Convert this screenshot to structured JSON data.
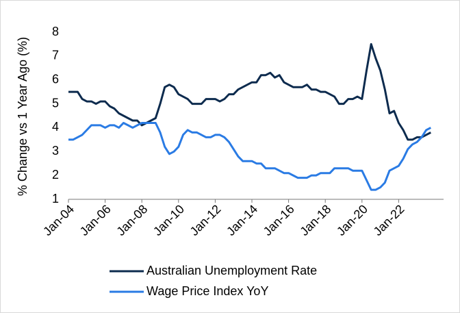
{
  "chart_data": {
    "type": "line",
    "y_label": "% Change vs 1 Year Ago (%)",
    "categories": [
      "Jan-04",
      null,
      null,
      null,
      null,
      null,
      null,
      null,
      "Jan-06",
      null,
      null,
      null,
      null,
      null,
      null,
      null,
      "Jan-08",
      null,
      null,
      null,
      null,
      null,
      null,
      null,
      "Jan-10",
      null,
      null,
      null,
      null,
      null,
      null,
      null,
      "Jan-12",
      null,
      null,
      null,
      null,
      null,
      null,
      null,
      "Jan-14",
      null,
      null,
      null,
      null,
      null,
      null,
      null,
      "Jan-16",
      null,
      null,
      null,
      null,
      null,
      null,
      null,
      "Jan-18",
      null,
      null,
      null,
      null,
      null,
      null,
      null,
      "Jan-20",
      null,
      null,
      null,
      null,
      null,
      null,
      null,
      "Jan-22",
      null,
      null,
      null,
      null,
      null,
      null,
      null
    ],
    "series": [
      {
        "name": "Australian Unemployment Rate",
        "color": "#0d2b4e",
        "values": [
          5.5,
          5.5,
          5.5,
          5.2,
          5.1,
          5.1,
          5.0,
          5.1,
          5.1,
          4.9,
          4.8,
          4.6,
          4.5,
          4.4,
          4.3,
          4.3,
          4.1,
          4.2,
          4.3,
          4.4,
          5.0,
          5.7,
          5.8,
          5.7,
          5.4,
          5.3,
          5.2,
          5.0,
          5.0,
          5.0,
          5.2,
          5.2,
          5.2,
          5.1,
          5.2,
          5.4,
          5.4,
          5.6,
          5.7,
          5.8,
          5.9,
          5.9,
          6.2,
          6.2,
          6.3,
          6.1,
          6.2,
          5.9,
          5.8,
          5.7,
          5.7,
          5.7,
          5.8,
          5.6,
          5.6,
          5.5,
          5.5,
          5.4,
          5.3,
          5.0,
          5.0,
          5.2,
          5.2,
          5.3,
          5.2,
          6.4,
          7.5,
          6.9,
          6.4,
          5.6,
          4.6,
          4.7,
          4.2,
          3.9,
          3.5,
          3.5,
          3.6,
          3.6,
          3.7,
          3.8
        ]
      },
      {
        "name": "Wage Price Index YoY",
        "color": "#2a7be4",
        "values": [
          3.5,
          3.5,
          3.6,
          3.7,
          3.9,
          4.1,
          4.1,
          4.1,
          4.0,
          4.1,
          4.1,
          4.0,
          4.2,
          4.1,
          4.0,
          4.1,
          4.2,
          4.2,
          4.2,
          4.2,
          3.8,
          3.2,
          2.9,
          3.0,
          3.2,
          3.7,
          3.9,
          3.8,
          3.8,
          3.7,
          3.6,
          3.6,
          3.7,
          3.7,
          3.6,
          3.4,
          3.1,
          2.8,
          2.6,
          2.6,
          2.6,
          2.5,
          2.5,
          2.3,
          2.3,
          2.3,
          2.2,
          2.1,
          2.1,
          2.0,
          1.9,
          1.9,
          1.9,
          2.0,
          2.0,
          2.1,
          2.1,
          2.1,
          2.3,
          2.3,
          2.3,
          2.3,
          2.2,
          2.2,
          2.2,
          1.8,
          1.4,
          1.4,
          1.5,
          1.7,
          2.2,
          2.3,
          2.4,
          2.7,
          3.1,
          3.3,
          3.4,
          3.6,
          3.9,
          4.0
        ]
      }
    ],
    "ylim": [
      1,
      8
    ],
    "yticks": [
      1,
      2,
      3,
      4,
      5,
      6,
      7,
      8
    ],
    "grid": false
  }
}
